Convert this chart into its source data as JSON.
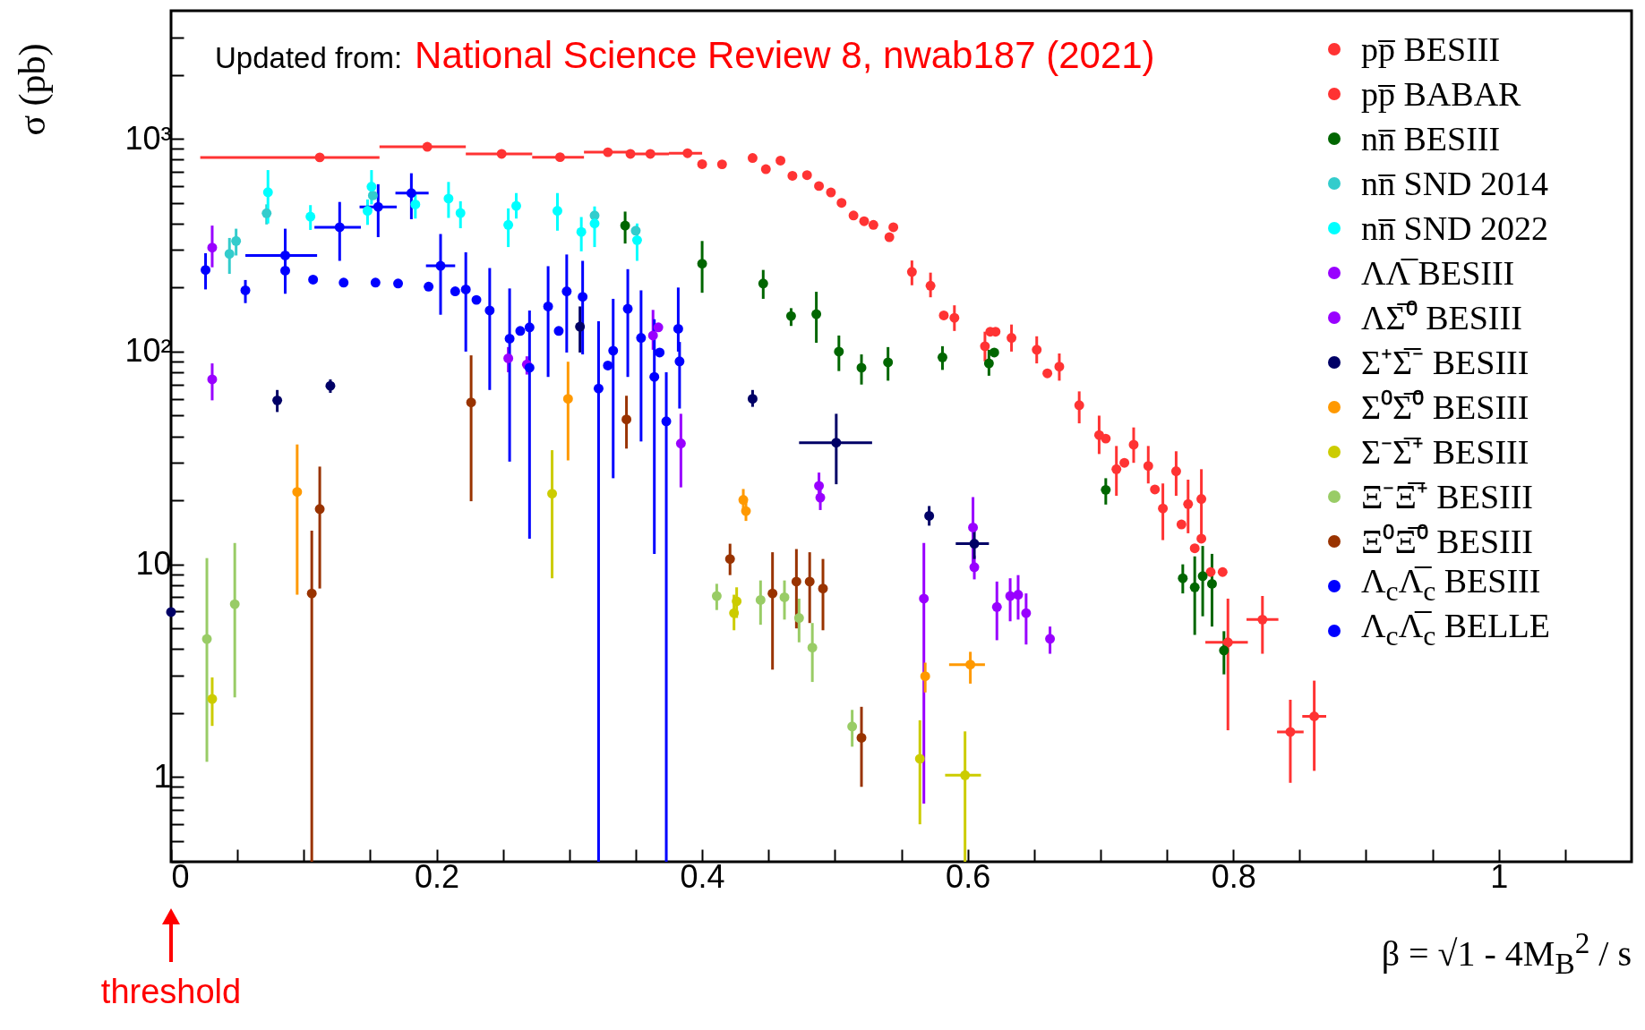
{
  "chart_data": {
    "type": "scatter",
    "ylabel": "σ (pb)",
    "xlabel": "β = √1 - 4M$_{B}$$^{2}$ / s",
    "log": true,
    "marker": "circle",
    "legend": "top right",
    "xlim": [
      0,
      1.1
    ],
    "ylim": [
      0.4,
      4000
    ],
    "xticks": [
      0,
      {
        "value": 0.05,
        "label": null
      },
      {
        "value": 0.1,
        "label": null
      },
      {
        "value": 0.15,
        "label": null
      },
      0.2,
      {
        "value": 0.25,
        "label": null
      },
      {
        "value": 0.3,
        "label": null
      },
      {
        "value": 0.35,
        "label": null
      },
      0.4,
      {
        "value": 0.45,
        "label": null
      },
      {
        "value": 0.5,
        "label": null
      },
      {
        "value": 0.55,
        "label": null
      },
      0.6,
      {
        "value": 0.65,
        "label": null
      },
      {
        "value": 0.7,
        "label": null
      },
      {
        "value": 0.75,
        "label": null
      },
      0.8,
      {
        "value": 0.85,
        "label": null
      },
      {
        "value": 0.9,
        "label": null
      },
      {
        "value": 0.95,
        "label": null
      },
      1,
      {
        "value": 1.05,
        "label": null
      }
    ],
    "yticks": [
      {
        "value": 0.4,
        "label": null
      },
      {
        "value": 0.5,
        "label": null
      },
      {
        "value": 0.6,
        "label": null
      },
      {
        "value": 0.7,
        "label": null
      },
      {
        "value": 0.8,
        "label": null
      },
      {
        "value": 0.9,
        "label": null
      },
      1,
      {
        "value": 2,
        "label": null
      },
      {
        "value": 3,
        "label": null
      },
      {
        "value": 4,
        "label": null
      },
      {
        "value": 5,
        "label": null
      },
      {
        "value": 6,
        "label": null
      },
      {
        "value": 7,
        "label": null
      },
      {
        "value": 8,
        "label": null
      },
      {
        "value": 9,
        "label": null
      },
      10,
      {
        "value": 20,
        "label": null
      },
      {
        "value": 30,
        "label": null
      },
      {
        "value": 40,
        "label": null
      },
      {
        "value": 50,
        "label": null
      },
      {
        "value": 60,
        "label": null
      },
      {
        "value": 70,
        "label": null
      },
      {
        "value": 80,
        "label": null
      },
      {
        "value": 90,
        "label": null
      },
      {
        "value": 100,
        "label": "10²"
      },
      {
        "value": 200,
        "label": null
      },
      {
        "value": 300,
        "label": null
      },
      {
        "value": 400,
        "label": null
      },
      {
        "value": 500,
        "label": null
      },
      {
        "value": 600,
        "label": null
      },
      {
        "value": 700,
        "label": null
      },
      {
        "value": 800,
        "label": null
      },
      {
        "value": 900,
        "label": null
      },
      {
        "value": 1000,
        "label": "10³"
      },
      {
        "value": 2000,
        "label": null
      },
      {
        "value": 3000,
        "label": null
      }
    ],
    "annotations": [
      "Updated from:",
      "National Science Review 8, nwab187 (2021)",
      "threshold"
    ],
    "series": [
      {
        "name": "pp̅ BESIII",
        "color": "#ff3333",
        "x": [
          0.346,
          0.4,
          0.448,
          0.468,
          0.488,
          0.505,
          0.522,
          0.541,
          0.582,
          0.617,
          0.621,
          0.66,
          0.704,
          0.718,
          0.741,
          0.761,
          0.771,
          0.776,
          0.783,
          0.792
        ],
        "values": [
          850,
          760,
          720,
          670,
          600,
          500,
          410,
          345,
          148,
          124,
          124,
          79,
          39,
          30,
          22.5,
          15.4,
          11.9,
          13.2,
          9.2,
          9.2
        ]
      },
      {
        "name": "pp̅ BABAR",
        "color": "#ff3333",
        "x": [
          0.112,
          0.193,
          0.249,
          0.293,
          0.329,
          0.361,
          0.389,
          0.415,
          0.438,
          0.459,
          0.479,
          0.497,
          0.514,
          0.529,
          0.544,
          0.558,
          0.572,
          0.59,
          0.613,
          0.633,
          0.652,
          0.669,
          0.684,
          0.699,
          0.712,
          0.725,
          0.736,
          0.747,
          0.757,
          0.766,
          0.776,
          0.796,
          0.822,
          0.843,
          0.861
        ],
        "values": [
          818,
          917,
          850,
          820,
          865,
          850,
          856,
          759,
          813,
          790,
          675,
          560,
          436,
          394,
          384,
          237,
          204,
          144,
          106,
          116,
          102,
          85,
          56,
          40.5,
          28,
          36.5,
          29,
          18.3,
          27.4,
          19.2,
          20.3,
          4.3,
          5.5,
          1.63,
          1.93
        ],
        "errors": [
          null,
          null,
          null,
          null,
          null,
          null,
          null,
          null,
          null,
          null,
          null,
          null,
          null,
          null,
          null,
          [
            205,
            268
          ],
          [
            180,
            235
          ],
          [
            125,
            165
          ],
          [
            90,
            124
          ],
          [
            100,
            134
          ],
          [
            88,
            118
          ],
          [
            73,
            98
          ],
          [
            46,
            65
          ],
          [
            33,
            50
          ],
          [
            21,
            36
          ],
          [
            30,
            44
          ],
          [
            24,
            36
          ],
          [
            13,
            24
          ],
          [
            21,
            34
          ],
          [
            14,
            25
          ],
          [
            13,
            28
          ],
          [
            1.66,
            6.9
          ],
          [
            3.8,
            7.1
          ],
          [
            0.94,
            2.31
          ],
          [
            1.07,
            2.84
          ]
        ],
        "xerrors": [
          [
            0.022,
            0.157
          ],
          [
            0.157,
            0.222
          ],
          [
            0.222,
            0.272
          ],
          [
            0.272,
            0.311
          ],
          [
            0.311,
            0.345
          ],
          [
            0.345,
            0.375
          ],
          [
            0.375,
            0.4
          ],
          null,
          null,
          null,
          null,
          null,
          null,
          null,
          null,
          null,
          null,
          null,
          null,
          null,
          null,
          null,
          null,
          null,
          null,
          null,
          null,
          null,
          null,
          null,
          null,
          [
            0.779,
            0.811
          ],
          [
            0.81,
            0.834
          ],
          [
            0.833,
            0.853
          ],
          [
            0.852,
            0.87
          ]
        ]
      },
      {
        "name": "nn̅ BESIII",
        "color": "#006600",
        "x": [
          0.342,
          0.4,
          0.446,
          0.467,
          0.486,
          0.503,
          0.52,
          0.54,
          0.581,
          0.616,
          0.62,
          0.704,
          0.762,
          0.771,
          0.777,
          0.784,
          0.793
        ],
        "values": [
          391,
          259,
          209,
          147,
          150,
          100,
          84,
          89,
          94,
          88,
          99,
          22.4,
          8.6,
          7.8,
          8.8,
          8.1,
          3.94
        ],
        "errors": [
          [
            322,
            455
          ],
          [
            189,
            331
          ],
          [
            177,
            242
          ],
          [
            132,
            160
          ],
          [
            110,
            191
          ],
          [
            81,
            119
          ],
          [
            70,
            97
          ],
          [
            73,
            105
          ],
          [
            82,
            106
          ],
          [
            77,
            102
          ],
          null,
          [
            19.1,
            25.4
          ],
          [
            7.3,
            10
          ],
          [
            4.66,
            10.9
          ],
          [
            5.7,
            12.2
          ],
          [
            5.1,
            11.2
          ],
          [
            3.04,
            4.85
          ]
        ]
      },
      {
        "name": "nn̅ SND 2014",
        "color": "#33cccc",
        "x": [
          0.044,
          0.049,
          0.072,
          0.152,
          0.319,
          0.35
        ],
        "values": [
          288,
          331,
          447,
          542,
          436,
          370
        ],
        "errors": [
          [
            232,
            342
          ],
          [
            283,
            378
          ],
          [
            396,
            492
          ],
          null,
          null,
          null
        ]
      },
      {
        "name": "nn̅ SND 2022",
        "color": "#00ffff",
        "x": [
          0.073,
          0.105,
          0.148,
          0.151,
          0.184,
          0.209,
          0.218,
          0.254,
          0.26,
          0.291,
          0.309,
          0.319,
          0.351
        ],
        "values": [
          561,
          431,
          459,
          596,
          492,
          524,
          448,
          394,
          484,
          459,
          365,
          400,
          334
        ],
        "errors": [
          [
            400,
            713
          ],
          [
            373,
            488
          ],
          [
            394,
            519
          ],
          [
            492,
            713
          ],
          [
            422,
            556
          ],
          [
            425,
            627
          ],
          [
            380,
            509
          ],
          [
            310,
            471
          ],
          [
            422,
            556
          ],
          [
            370,
            556
          ],
          [
            296,
            429
          ],
          [
            310,
            481
          ],
          [
            267,
            400
          ]
        ]
      },
      {
        "name": "ΛΛ̅ BESIII",
        "color": "#9900ff",
        "x": [
          0.031,
          0.363,
          0.367,
          0.604
        ],
        "values": [
          308,
          119,
          130,
          14.9
        ],
        "errors": [
          [
            249,
            391
          ],
          [
            102,
            157
          ],
          null,
          [
            10,
            20.7
          ]
        ]
      },
      {
        "name": "ΛΣ̅⁰ BESIII",
        "color": "#9900ff",
        "x": [
          0.031,
          0.254,
          0.268,
          0.384,
          0.488,
          0.489,
          0.567,
          0.605,
          0.622,
          0.632,
          0.638,
          0.644,
          0.662
        ],
        "values": [
          74,
          93,
          87,
          37,
          23.4,
          20.6,
          6.9,
          9.7,
          6.3,
          7.1,
          7.2,
          5.9,
          4.47
        ],
        "errors": [
          [
            59,
            88
          ],
          [
            80,
            105
          ],
          [
            78,
            95
          ],
          [
            23,
            51
          ],
          [
            20,
            27
          ],
          [
            18,
            24
          ],
          [
            0.75,
            12.6
          ],
          [
            8.5,
            11
          ],
          [
            4.4,
            8.3
          ],
          [
            5.4,
            8.6
          ],
          [
            5.5,
            8.9
          ],
          [
            4.2,
            7.3
          ],
          [
            3.8,
            5.1
          ]
        ]
      },
      {
        "name": "Σ⁺Σ̅⁻ BESIII",
        "color": "#000066",
        "x": [
          0,
          0.08,
          0.12,
          0.308,
          0.438,
          0.501,
          0.571,
          0.605
        ],
        "values": [
          5.97,
          59,
          69,
          131,
          60,
          37.3,
          16.9,
          12.5
        ],
        "errors": [
          null,
          [
            52,
            66
          ],
          [
            64,
            74
          ],
          [
            99,
            163
          ],
          [
            55,
            66
          ],
          [
            23.8,
            51
          ],
          [
            15.2,
            18.8
          ],
          [
            10.6,
            14.4
          ]
        ],
        "xerrors": [
          null,
          null,
          null,
          null,
          null,
          [
            0.473,
            0.528
          ],
          null,
          [
            0.591,
            0.616
          ]
        ]
      },
      {
        "name": "Σ⁰Σ̅⁰ BESIII",
        "color": "#ff9900",
        "x": [
          0.095,
          0.299,
          0.431,
          0.433,
          0.568,
          0.602
        ],
        "values": [
          21.9,
          60,
          20.1,
          17.8,
          2.98,
          3.38
        ],
        "errors": [
          [
            7.2,
            36.6
          ],
          [
            30.8,
            89.6
          ],
          [
            18,
            22.6
          ],
          [
            16,
            20
          ],
          [
            2.5,
            3.45
          ],
          [
            2.75,
            3.88
          ]
        ],
        "xerrors": [
          null,
          null,
          null,
          null,
          null,
          [
            0.586,
            0.613
          ]
        ]
      },
      {
        "name": "Σ⁻Σ̅⁺ BESIII",
        "color": "#cccc00",
        "x": [
          0.031,
          0.287,
          0.424,
          0.426,
          0.564,
          0.598
        ],
        "values": [
          2.33,
          21.5,
          5.9,
          6.7,
          1.22,
          1.02
        ],
        "errors": [
          [
            1.74,
            2.94
          ],
          [
            8.6,
            34.4
          ],
          [
            4.9,
            7.2
          ],
          [
            5.6,
            7.8
          ],
          [
            0.6,
            1.85
          ],
          [
            0.4,
            1.64
          ]
        ],
        "xerrors": [
          null,
          null,
          null,
          null,
          null,
          [
            0.583,
            0.61
          ]
        ]
      },
      {
        "name": "Ξ⁻Ξ̅⁺ BESIII",
        "color": "#99cc66",
        "x": [
          0.027,
          0.048,
          0.411,
          0.444,
          0.462,
          0.473,
          0.483,
          0.513
        ],
        "values": [
          4.46,
          6.5,
          7.1,
          6.8,
          7.0,
          5.6,
          4.06,
          1.73
        ],
        "errors": [
          [
            1.18,
            10.7
          ],
          [
            2.37,
            12.6
          ],
          [
            6.1,
            8.1
          ],
          [
            5.2,
            8.4
          ],
          [
            5.5,
            8.4
          ],
          [
            4.3,
            6.9
          ],
          [
            2.8,
            5.3
          ],
          [
            1.39,
            2.07
          ]
        ]
      },
      {
        "name": "Ξ⁰Ξ̅⁰ BESIII",
        "color": "#993300",
        "x": [
          0.106,
          0.112,
          0.226,
          0.343,
          0.421,
          0.453,
          0.471,
          0.481,
          0.491,
          0.52
        ],
        "values": [
          7.3,
          18.2,
          57.7,
          48,
          10.6,
          7.3,
          8.3,
          8.3,
          7.7,
          1.53
        ],
        "errors": [
          [
            0.4,
            14.4
          ],
          [
            7.7,
            28.8
          ],
          [
            19.8,
            96
          ],
          [
            35,
            62
          ],
          [
            8.9,
            12.5
          ],
          [
            3.2,
            11.4
          ],
          [
            5,
            11.8
          ],
          [
            5.3,
            11.4
          ],
          [
            4.9,
            10.6
          ],
          [
            0.9,
            2.14
          ]
        ]
      },
      {
        "name": "Λ$_{c}$Λ̅$_{c}$ BESIII",
        "color": "#0000ff",
        "x": [
          0.026,
          0.056,
          0.086,
          0.107,
          0.13,
          0.154,
          0.171,
          0.194,
          0.214,
          0.23,
          0.263,
          0.27,
          0.292,
          0.329,
          0.368,
          0.383
        ],
        "values": [
          242,
          194,
          240,
          218,
          211,
          211,
          209,
          202,
          192,
          175,
          125,
          130,
          125,
          86,
          99,
          90
        ],
        "errors": [
          [
            196,
            290
          ],
          [
            169,
            217
          ],
          null,
          null,
          null,
          null,
          null,
          null,
          null,
          null,
          null,
          null,
          null,
          null,
          null,
          [
            54,
            111
          ]
        ]
      },
      {
        "name": "Λ$_{c}$Λ̅$_{c}$ BELLE",
        "color": "#0000ff",
        "x": [
          0.086,
          0.127,
          0.156,
          0.181,
          0.203,
          0.222,
          0.24,
          0.255,
          0.27,
          0.284,
          0.298,
          0.31,
          0.322,
          0.333,
          0.344,
          0.354,
          0.364,
          0.373,
          0.382
        ],
        "values": [
          283,
          384,
          479,
          556,
          253,
          196,
          156,
          115,
          84,
          163,
          192,
          181,
          67,
          101,
          159,
          116,
          76,
          47,
          128
        ],
        "errors": [
          [
            187,
            378
          ],
          [
            267,
            505
          ],
          [
            345,
            612
          ],
          [
            419,
            689
          ],
          [
            149,
            357
          ],
          [
            100,
            293
          ],
          [
            66,
            247
          ],
          [
            30.4,
            198
          ],
          [
            13.2,
            156
          ],
          [
            76,
            252
          ],
          [
            99,
            286
          ],
          [
            97,
            267
          ],
          [
            0.4,
            139
          ],
          [
            25.4,
            177
          ],
          [
            76,
            244
          ],
          [
            37.8,
            194
          ],
          [
            11.2,
            142
          ],
          [
            0.4,
            80
          ],
          [
            100,
            200
          ]
        ],
        "xerrors": [
          [
            0.056,
            0.11
          ],
          [
            0.108,
            0.143
          ],
          [
            0.142,
            0.17
          ],
          [
            0.169,
            0.194
          ],
          [
            0.192,
            0.214
          ],
          null,
          null,
          null,
          null,
          null,
          null,
          null,
          null,
          null,
          null,
          null,
          null,
          null,
          null
        ]
      }
    ]
  }
}
